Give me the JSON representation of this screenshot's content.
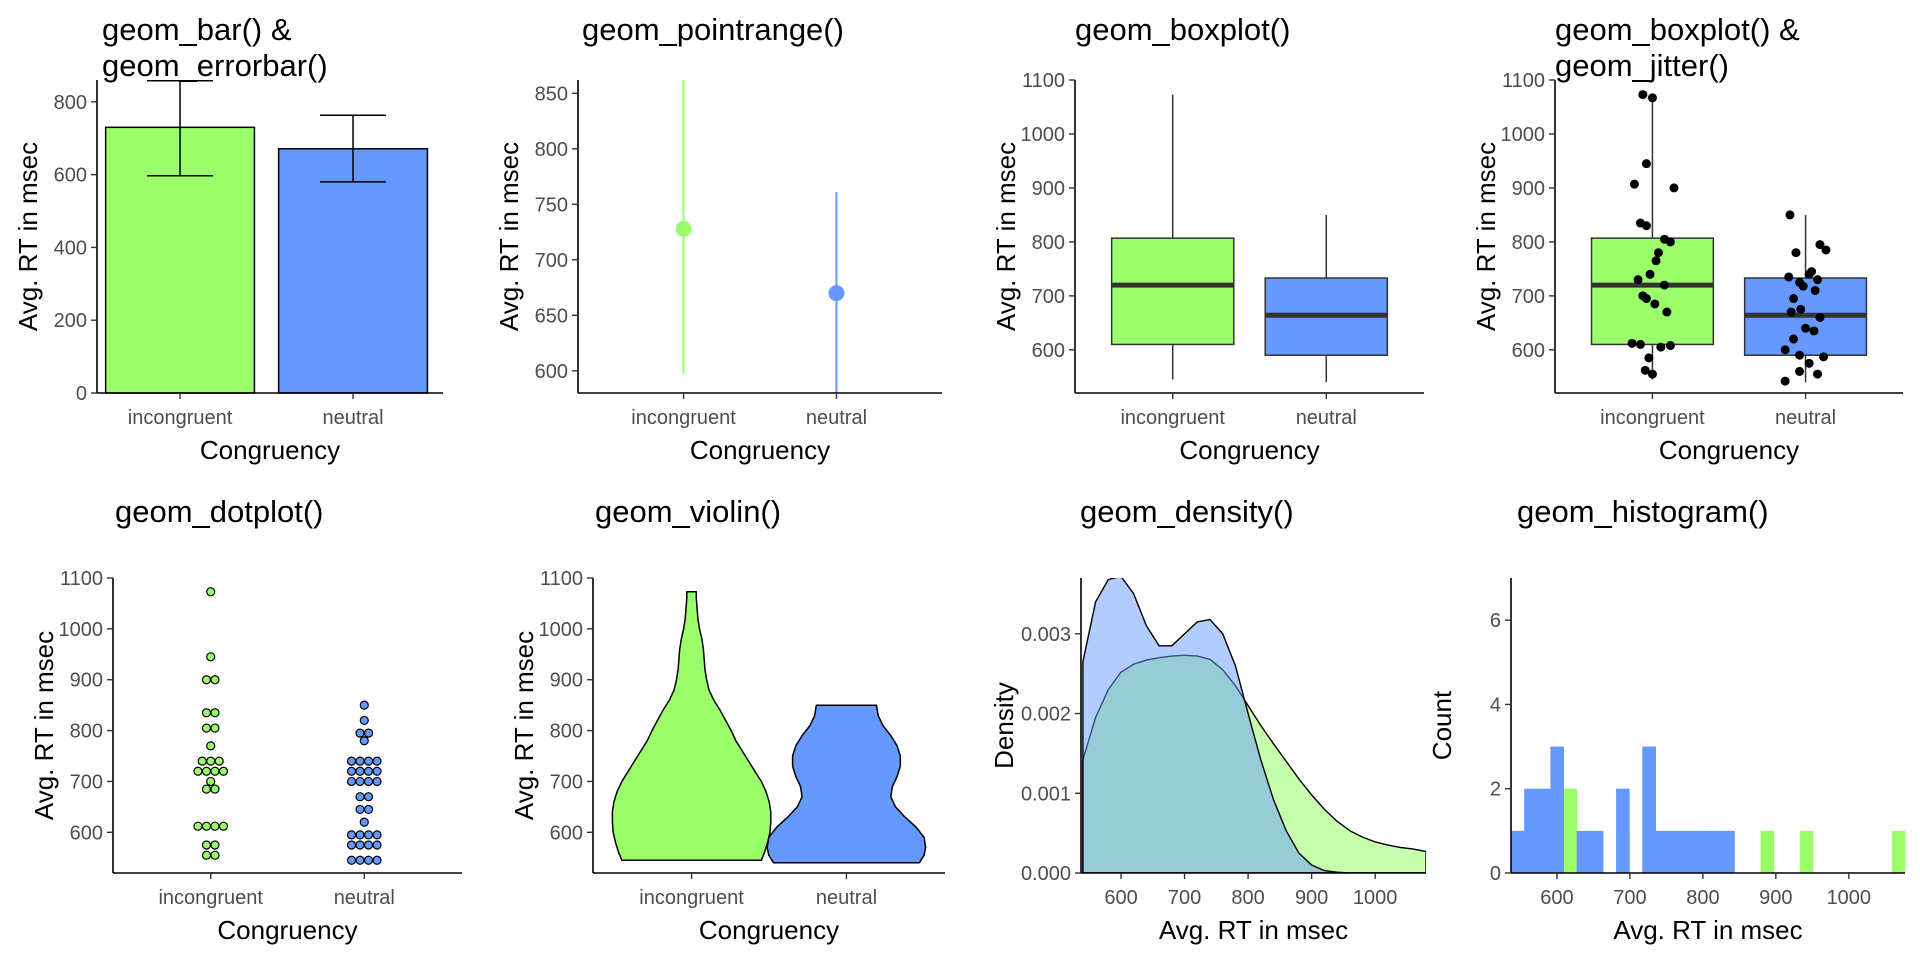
{
  "colors": {
    "incongruent": "#9bff6b",
    "neutral": "#6699ff",
    "median": "#333333",
    "jitter": "#000000"
  },
  "chart_data": [
    {
      "type": "bar",
      "title_lines": [
        "geom_bar() &",
        "geom_errorbar()"
      ],
      "xlabel": "Congruency",
      "ylabel": "Avg. RT in msec",
      "categories": [
        "incongruent",
        "neutral"
      ],
      "values": [
        730,
        671
      ],
      "error_low": [
        597,
        580
      ],
      "error_high": [
        858,
        763
      ],
      "ylim": [
        0,
        860
      ],
      "yticks": [
        0,
        200,
        400,
        600,
        800
      ]
    },
    {
      "type": "pointrange",
      "title_lines": [
        "geom_pointrange()"
      ],
      "xlabel": "Congruency",
      "ylabel": "Avg. RT in msec",
      "categories": [
        "incongruent",
        "neutral"
      ],
      "values": [
        728,
        670
      ],
      "range_low": [
        597,
        580
      ],
      "range_high": [
        862,
        761
      ],
      "ylim": [
        580,
        862
      ],
      "yticks": [
        600,
        650,
        700,
        750,
        800,
        850
      ]
    },
    {
      "type": "boxplot",
      "title_lines": [
        "geom_boxplot()"
      ],
      "xlabel": "Congruency",
      "ylabel": "Avg. RT in msec",
      "categories": [
        "incongruent",
        "neutral"
      ],
      "boxes": [
        {
          "min": 545,
          "q1": 610,
          "median": 720,
          "q3": 807,
          "max": 1073
        },
        {
          "min": 540,
          "q1": 590,
          "median": 664,
          "q3": 733,
          "max": 850
        }
      ],
      "ylim": [
        520,
        1100
      ],
      "yticks": [
        600,
        700,
        800,
        900,
        1000,
        1100
      ]
    },
    {
      "type": "boxplot",
      "title_lines": [
        "geom_boxplot() &",
        "geom_jitter()"
      ],
      "xlabel": "Congruency",
      "ylabel": "Avg. RT in msec",
      "categories": [
        "incongruent",
        "neutral"
      ],
      "boxes": [
        {
          "min": 545,
          "q1": 610,
          "median": 720,
          "q3": 807,
          "max": 1073
        },
        {
          "min": 540,
          "q1": 590,
          "median": 664,
          "q3": 733,
          "max": 850
        }
      ],
      "jitter_points": [
        [
          0.92,
          1073
        ],
        [
          1.0,
          1067
        ],
        [
          0.85,
          907
        ],
        [
          0.95,
          945
        ],
        [
          1.18,
          900
        ],
        [
          0.9,
          835
        ],
        [
          0.95,
          830
        ],
        [
          1.1,
          805
        ],
        [
          1.15,
          800
        ],
        [
          1.05,
          780
        ],
        [
          1.03,
          765
        ],
        [
          0.98,
          740
        ],
        [
          0.88,
          730
        ],
        [
          1.1,
          720
        ],
        [
          0.92,
          700
        ],
        [
          0.95,
          695
        ],
        [
          1.02,
          685
        ],
        [
          1.12,
          670
        ],
        [
          0.83,
          612
        ],
        [
          0.9,
          610
        ],
        [
          1.07,
          605
        ],
        [
          1.15,
          608
        ],
        [
          0.97,
          585
        ],
        [
          0.94,
          562
        ],
        [
          1.0,
          555
        ],
        [
          1.87,
          850
        ],
        [
          2.12,
          795
        ],
        [
          2.17,
          785
        ],
        [
          1.92,
          780
        ],
        [
          2.05,
          745
        ],
        [
          2.03,
          740
        ],
        [
          1.86,
          735
        ],
        [
          1.95,
          725
        ],
        [
          2.1,
          730
        ],
        [
          1.98,
          718
        ],
        [
          2.08,
          710
        ],
        [
          1.9,
          695
        ],
        [
          1.96,
          675
        ],
        [
          1.88,
          670
        ],
        [
          2.12,
          660
        ],
        [
          2.0,
          640
        ],
        [
          2.07,
          635
        ],
        [
          1.9,
          620
        ],
        [
          1.83,
          600
        ],
        [
          1.95,
          590
        ],
        [
          2.15,
          587
        ],
        [
          2.03,
          575
        ],
        [
          1.95,
          560
        ],
        [
          2.1,
          555
        ],
        [
          1.83,
          542
        ]
      ],
      "ylim": [
        520,
        1100
      ],
      "yticks": [
        600,
        700,
        800,
        900,
        1000,
        1100
      ]
    },
    {
      "type": "dotplot",
      "title_lines": [
        "geom_dotplot()"
      ],
      "xlabel": "Congruency",
      "ylabel": "Avg. RT in msec",
      "categories": [
        "incongruent",
        "neutral"
      ],
      "dot_rows": [
        [
          [
            1073,
            1
          ],
          [
            945,
            1
          ],
          [
            900,
            2
          ],
          [
            835,
            2
          ],
          [
            805,
            2
          ],
          [
            770,
            1
          ],
          [
            740,
            3
          ],
          [
            720,
            4
          ],
          [
            700,
            1
          ],
          [
            685,
            2
          ],
          [
            612,
            4
          ],
          [
            575,
            2
          ],
          [
            555,
            2
          ]
        ],
        [
          [
            850,
            1
          ],
          [
            820,
            1
          ],
          [
            795,
            2
          ],
          [
            780,
            1
          ],
          [
            740,
            4
          ],
          [
            720,
            4
          ],
          [
            700,
            4
          ],
          [
            670,
            2
          ],
          [
            645,
            2
          ],
          [
            620,
            1
          ],
          [
            595,
            4
          ],
          [
            575,
            4
          ],
          [
            545,
            4
          ]
        ]
      ],
      "ylim": [
        520,
        1100
      ],
      "yticks": [
        600,
        700,
        800,
        900,
        1000,
        1100
      ]
    },
    {
      "type": "violin",
      "title_lines": [
        "geom_violin()"
      ],
      "xlabel": "Congruency",
      "ylabel": "Avg. RT in msec",
      "categories": [
        "incongruent",
        "neutral"
      ],
      "violins": [
        [
          [
            545,
            0.88
          ],
          [
            560,
            0.92
          ],
          [
            580,
            0.96
          ],
          [
            600,
            0.99
          ],
          [
            620,
            1.0
          ],
          [
            640,
            1.0
          ],
          [
            660,
            0.98
          ],
          [
            680,
            0.94
          ],
          [
            700,
            0.88
          ],
          [
            720,
            0.8
          ],
          [
            740,
            0.72
          ],
          [
            760,
            0.64
          ],
          [
            780,
            0.56
          ],
          [
            800,
            0.5
          ],
          [
            820,
            0.43
          ],
          [
            840,
            0.36
          ],
          [
            860,
            0.28
          ],
          [
            880,
            0.22
          ],
          [
            900,
            0.19
          ],
          [
            920,
            0.17
          ],
          [
            940,
            0.16
          ],
          [
            960,
            0.15
          ],
          [
            980,
            0.13
          ],
          [
            1000,
            0.1
          ],
          [
            1020,
            0.08
          ],
          [
            1040,
            0.07
          ],
          [
            1060,
            0.06
          ],
          [
            1073,
            0.06
          ]
        ],
        [
          [
            540,
            0.92
          ],
          [
            555,
            0.98
          ],
          [
            570,
            1.0
          ],
          [
            590,
            0.98
          ],
          [
            610,
            0.88
          ],
          [
            630,
            0.74
          ],
          [
            650,
            0.62
          ],
          [
            670,
            0.56
          ],
          [
            690,
            0.58
          ],
          [
            710,
            0.64
          ],
          [
            730,
            0.68
          ],
          [
            750,
            0.68
          ],
          [
            770,
            0.64
          ],
          [
            790,
            0.56
          ],
          [
            810,
            0.46
          ],
          [
            830,
            0.4
          ],
          [
            850,
            0.38
          ]
        ]
      ],
      "ylim": [
        520,
        1100
      ],
      "yticks": [
        600,
        700,
        800,
        900,
        1000,
        1100
      ]
    },
    {
      "type": "area",
      "title_lines": [
        "geom_density()"
      ],
      "xlabel": "Avg. RT in msec",
      "ylabel": "Density",
      "x": [
        540,
        560,
        580,
        600,
        620,
        640,
        660,
        680,
        700,
        720,
        740,
        760,
        780,
        800,
        820,
        840,
        860,
        880,
        900,
        920,
        940,
        960,
        980,
        1000,
        1020,
        1040,
        1060,
        1080
      ],
      "series": [
        {
          "name": "incongruent",
          "values": [
            0.00142,
            0.00195,
            0.0023,
            0.00252,
            0.00262,
            0.00267,
            0.0027,
            0.00272,
            0.00273,
            0.00272,
            0.00268,
            0.00255,
            0.00235,
            0.0021,
            0.00185,
            0.00162,
            0.0014,
            0.00118,
            0.00098,
            0.0008,
            0.00065,
            0.00053,
            0.00045,
            0.00039,
            0.00035,
            0.00032,
            0.0003,
            0.00027
          ]
        },
        {
          "name": "neutral",
          "values": [
            0.00265,
            0.0034,
            0.00368,
            0.00372,
            0.0035,
            0.0031,
            0.00285,
            0.00285,
            0.003,
            0.00315,
            0.00318,
            0.003,
            0.0026,
            0.002,
            0.00142,
            0.00092,
            0.00053,
            0.00025,
            0.0001,
            3e-05,
            1e-05,
            0.0,
            0.0,
            0.0,
            0.0,
            0.0,
            0.0,
            0.0
          ]
        }
      ],
      "xlim": [
        537,
        1080
      ],
      "ylim": [
        0,
        0.0037
      ],
      "xticks": [
        600,
        700,
        800,
        900,
        1000
      ],
      "yticks": [
        0,
        0.001,
        0.002,
        0.003
      ],
      "ytick_labels": [
        "0.000",
        "0.001",
        "0.002",
        "0.003"
      ]
    },
    {
      "type": "bar",
      "title_lines": [
        "geom_histogram()"
      ],
      "xlabel": "Avg. RT in msec",
      "ylabel": "Count",
      "bin_edges": [
        537,
        555,
        573,
        591,
        609,
        627,
        645,
        663,
        681,
        699,
        717,
        735,
        753,
        771,
        789,
        807,
        825,
        843,
        861,
        879,
        897,
        915,
        933,
        951,
        969,
        987,
        1005,
        1023,
        1041,
        1059,
        1077
      ],
      "series": [
        {
          "name": "incongruent",
          "values": [
            1,
            1,
            1,
            1,
            2,
            1,
            0,
            0,
            1,
            0,
            3,
            0,
            0,
            0,
            1,
            1,
            0,
            0,
            0,
            1,
            0,
            0,
            1,
            0,
            0,
            0,
            0,
            0,
            0,
            1
          ]
        },
        {
          "name": "neutral",
          "values": [
            1,
            2,
            2,
            3,
            0,
            1,
            1,
            0,
            2,
            0,
            3,
            1,
            1,
            1,
            1,
            1,
            1,
            0,
            0,
            0,
            0,
            0,
            0,
            0,
            0,
            0,
            0,
            0,
            0,
            0
          ]
        }
      ],
      "xlim": [
        537,
        1077
      ],
      "ylim": [
        0,
        7
      ],
      "xticks": [
        600,
        700,
        800,
        900,
        1000
      ],
      "yticks": [
        0,
        2,
        4,
        6
      ]
    }
  ]
}
